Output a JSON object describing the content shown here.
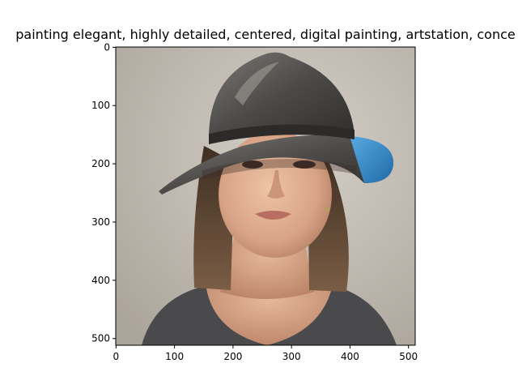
{
  "figure": {
    "title": "painting elegant, highly detailed, centered, digital painting, artstation, conce"
  },
  "chart_data": {
    "type": "image",
    "title": "painting elegant, highly detailed, centered, digital painting, artstation, conce",
    "xlabel": "",
    "ylabel": "",
    "xlim": [
      -0.5,
      511.5
    ],
    "ylim": [
      511.5,
      -0.5
    ],
    "x_ticks": [
      "0",
      "100",
      "200",
      "300",
      "400",
      "500"
    ],
    "y_ticks": [
      "0",
      "100",
      "200",
      "300",
      "400",
      "500"
    ],
    "x_tick_values": [
      0,
      100,
      200,
      300,
      400,
      500
    ],
    "y_tick_values": [
      0,
      100,
      200,
      300,
      400,
      500
    ],
    "grid": false,
    "image_content": "oil painting portrait",
    "palette": {
      "background": "#c8c2b9",
      "skin": "#d9a98c",
      "hair": "#5a4433",
      "helmet": "#4a4846",
      "helmet_blue": "#3a8ccc",
      "shirt": "#4a4a4c"
    }
  }
}
